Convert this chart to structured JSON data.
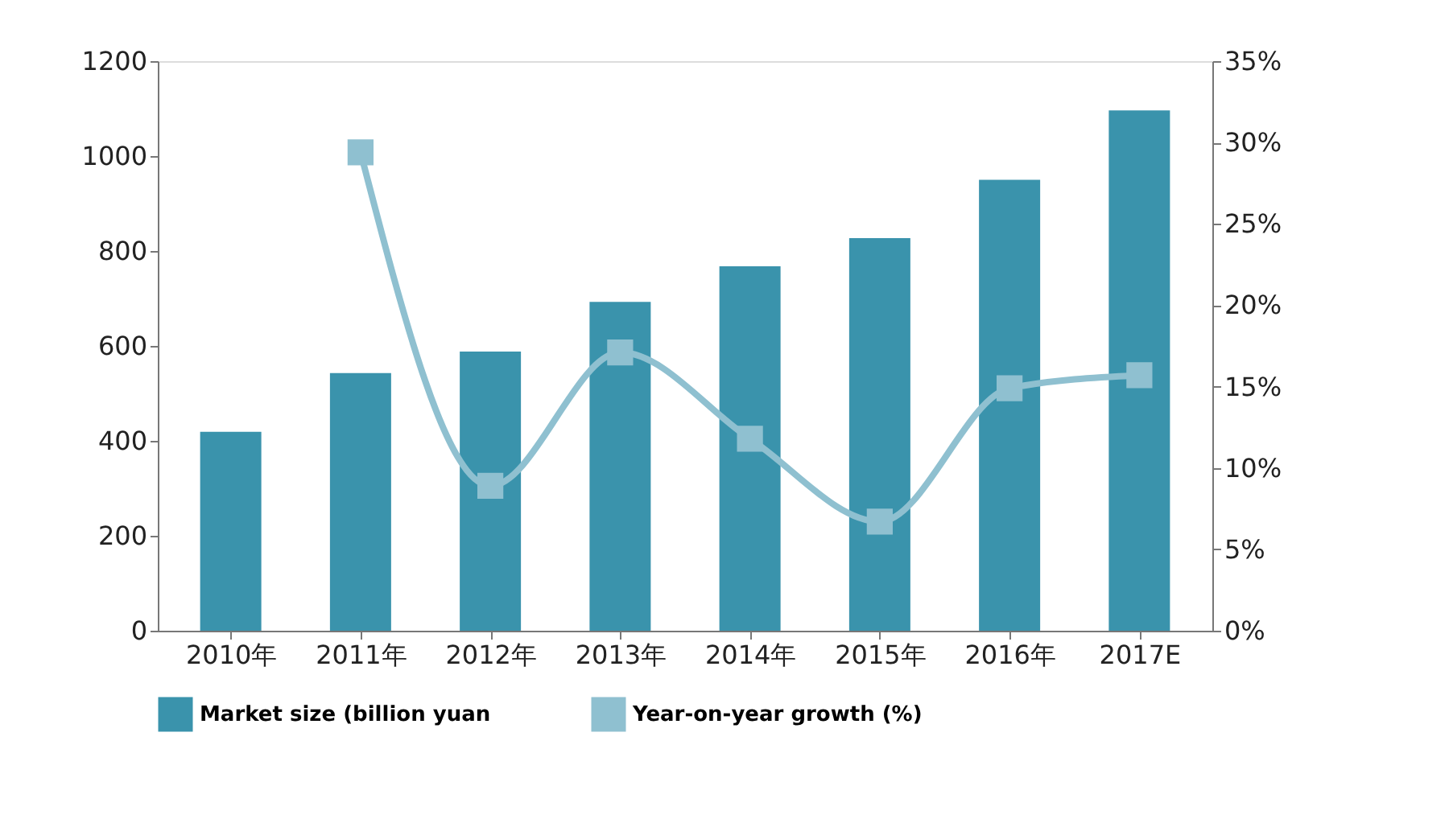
{
  "chart_data": {
    "type": "bar",
    "categories": [
      "2010年",
      "2011年",
      "2012年",
      "2013年",
      "2014年",
      "2015年",
      "2016年",
      "2017E"
    ],
    "series": [
      {
        "name": "Market size (billion yuan",
        "color": "#3a93ac",
        "values": [
          419,
          543,
          588,
          693,
          768,
          827,
          950,
          1096
        ]
      },
      {
        "name": "Year-on-year growth (%)",
        "type": "line",
        "axis": "y2",
        "color": "#8fc0d0",
        "values": [
          null,
          29.4,
          8.9,
          17.1,
          11.8,
          6.7,
          14.9,
          15.7
        ]
      }
    ],
    "ylim": [
      0,
      1200
    ],
    "yticks": [
      0,
      200,
      400,
      600,
      800,
      1000,
      1200
    ],
    "y2lim": [
      0,
      35
    ],
    "y2ticks": [
      {
        "value": 0,
        "label": "0%"
      },
      {
        "value": 5,
        "label": "5%"
      },
      {
        "value": 10,
        "label": "10%"
      },
      {
        "value": 15,
        "label": "15%"
      },
      {
        "value": 20,
        "label": "20%"
      },
      {
        "value": 25,
        "label": "25%"
      },
      {
        "value": 30,
        "label": "30%"
      },
      {
        "value": 35,
        "label": "35%"
      }
    ],
    "grid": false,
    "legend": "bottom",
    "marker": "square"
  }
}
